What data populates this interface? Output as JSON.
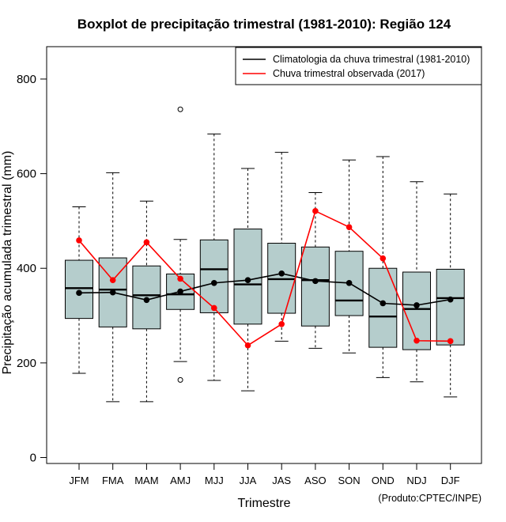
{
  "chart_data": {
    "type": "boxplot",
    "title": "Boxplot de precipitação trimestral (1981-2010): Região 124",
    "xlabel": "Trimestre",
    "ylabel": "Precipitação acumulada trimestral (mm)",
    "ylim": [
      -5,
      870
    ],
    "yticks": [
      0,
      200,
      400,
      600,
      800
    ],
    "credit": "(Produto:CPTEC/INPE)",
    "box_color": "#b5cdcc",
    "categories": [
      "JFM",
      "FMA",
      "MAM",
      "AMJ",
      "MJJ",
      "JJA",
      "JAS",
      "ASO",
      "SON",
      "OND",
      "NDJ",
      "DJF"
    ],
    "boxes": [
      {
        "whisker_low": 178,
        "q1": 294,
        "median": 358,
        "q3": 417,
        "whisker_high": 530,
        "outliers": []
      },
      {
        "whisker_low": 118,
        "q1": 276,
        "median": 355,
        "q3": 422,
        "whisker_high": 602,
        "outliers": []
      },
      {
        "whisker_low": 118,
        "q1": 272,
        "median": 343,
        "q3": 405,
        "whisker_high": 542,
        "outliers": []
      },
      {
        "whisker_low": 203,
        "q1": 313,
        "median": 345,
        "q3": 388,
        "whisker_high": 461,
        "outliers": [
          164,
          736
        ]
      },
      {
        "whisker_low": 163,
        "q1": 306,
        "median": 398,
        "q3": 460,
        "whisker_high": 684,
        "outliers": []
      },
      {
        "whisker_low": 141,
        "q1": 282,
        "median": 366,
        "q3": 483,
        "whisker_high": 611,
        "outliers": []
      },
      {
        "whisker_low": 246,
        "q1": 305,
        "median": 377,
        "q3": 453,
        "whisker_high": 645,
        "outliers": []
      },
      {
        "whisker_low": 231,
        "q1": 278,
        "median": 375,
        "q3": 445,
        "whisker_high": 560,
        "outliers": []
      },
      {
        "whisker_low": 221,
        "q1": 300,
        "median": 332,
        "q3": 436,
        "whisker_high": 629,
        "outliers": []
      },
      {
        "whisker_low": 169,
        "q1": 233,
        "median": 298,
        "q3": 400,
        "whisker_high": 636,
        "outliers": []
      },
      {
        "whisker_low": 160,
        "q1": 228,
        "median": 314,
        "q3": 392,
        "whisker_high": 583,
        "outliers": []
      },
      {
        "whisker_low": 128,
        "q1": 238,
        "median": 337,
        "q3": 398,
        "whisker_high": 557,
        "outliers": []
      }
    ],
    "series": [
      {
        "name": "Climatologia da chuva trimestral (1981-2010)",
        "color": "#000000",
        "values": [
          348,
          349,
          333,
          351,
          369,
          375,
          389,
          373,
          369,
          326,
          322,
          334
        ]
      },
      {
        "name": "Chuva trimestral observada (2017)",
        "color": "#ff0000",
        "values": [
          459,
          375,
          455,
          378,
          316,
          237,
          282,
          521,
          487,
          421,
          247,
          246
        ]
      }
    ]
  }
}
